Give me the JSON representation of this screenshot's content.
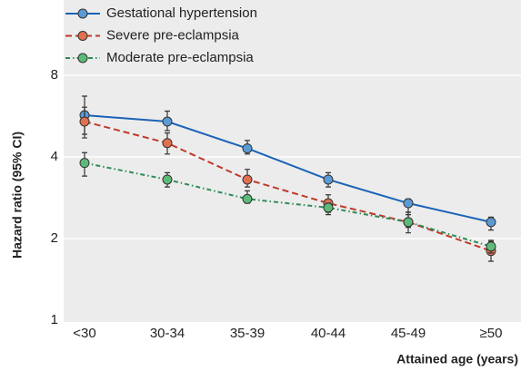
{
  "chart_data": {
    "type": "line",
    "y_label": "Hazard ratio (95% CI)",
    "x_label": "Attained age (years)",
    "categories": [
      "<30",
      "30-34",
      "35-39",
      "40-44",
      "45-49",
      "≥50"
    ],
    "y_scale": "log",
    "ylim": [
      1,
      8
    ],
    "yticks": [
      1,
      2,
      4,
      8
    ],
    "grid": true,
    "legend": "top-left",
    "series": [
      {
        "name": "Gestational hypertension",
        "color": "#1a63b7",
        "marker_color": "#5b9bd5",
        "linestyle": "solid",
        "values": [
          5.7,
          5.4,
          4.3,
          3.3,
          2.7,
          2.3
        ],
        "ci_low": [
          4.85,
          5.0,
          4.1,
          3.1,
          2.5,
          2.15
        ],
        "ci_high": [
          6.7,
          5.9,
          4.6,
          3.5,
          2.8,
          2.4
        ]
      },
      {
        "name": "Severe pre-eclampsia",
        "color": "#c0392b",
        "marker_color": "#e07050",
        "linestyle": "dashed",
        "values": [
          5.4,
          4.5,
          3.3,
          2.7,
          2.3,
          1.8
        ],
        "ci_low": [
          4.7,
          4.1,
          3.1,
          2.5,
          2.1,
          1.65
        ],
        "ci_high": [
          6.1,
          4.9,
          3.6,
          2.9,
          2.5,
          1.95
        ]
      },
      {
        "name": "Moderate pre-eclampsia",
        "color": "#2e8b57",
        "marker_color": "#5dbb7a",
        "linestyle": "dashdot",
        "values": [
          3.8,
          3.3,
          2.8,
          2.6,
          2.3,
          1.87
        ],
        "ci_low": [
          3.4,
          3.1,
          2.7,
          2.45,
          2.2,
          1.77
        ],
        "ci_high": [
          4.15,
          3.5,
          3.0,
          2.7,
          2.45,
          1.97
        ]
      }
    ]
  }
}
